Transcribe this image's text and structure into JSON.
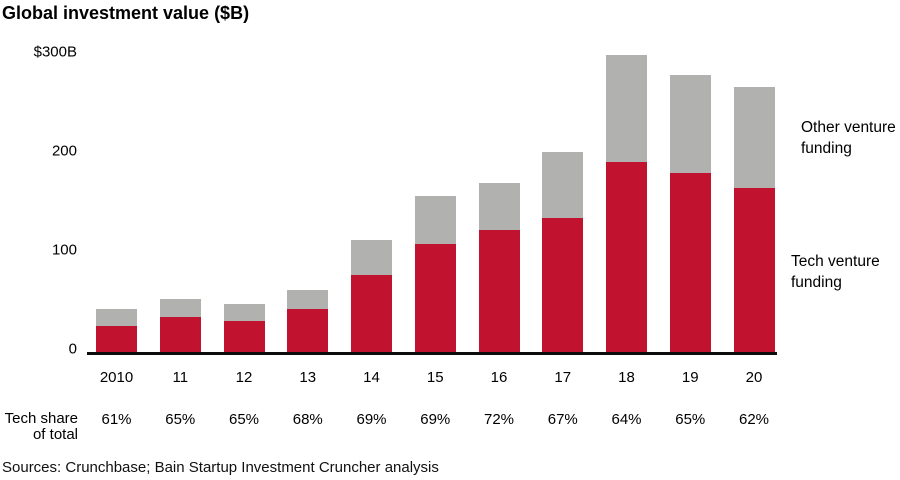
{
  "page": {
    "title": "Global investment value ($B)",
    "sources": "Sources: Crunchbase; Bain Startup Investment Cruncher analysis"
  },
  "labels": {
    "tech_share_line1": "Tech share",
    "tech_share_line2": "of total",
    "other_funding": "Other venture funding",
    "tech_funding": "Tech venture funding"
  },
  "colors": {
    "tech_red": "#c1122f",
    "other_gray": "#b1b1af",
    "axis_black": "#0d0d0d"
  },
  "chart_data": {
    "type": "bar",
    "stacked": true,
    "title": "Global investment value ($B)",
    "categories": [
      "2010",
      "11",
      "12",
      "13",
      "14",
      "15",
      "16",
      "17",
      "18",
      "19",
      "20"
    ],
    "series": [
      {
        "name": "Tech venture funding",
        "color": "#c1122f",
        "values": [
          26,
          35,
          31,
          43,
          78,
          109,
          123,
          135,
          192,
          181,
          166
        ]
      },
      {
        "name": "Other venture funding",
        "color": "#b1b1af",
        "values": [
          17,
          19,
          17,
          20,
          35,
          49,
          48,
          67,
          108,
          99,
          102
        ]
      }
    ],
    "totals": [
      43,
      54,
      48,
      63,
      113,
      158,
      171,
      202,
      300,
      280,
      268
    ],
    "tech_share_pct": [
      "61%",
      "65%",
      "65%",
      "68%",
      "69%",
      "69%",
      "72%",
      "67%",
      "64%",
      "65%",
      "62%"
    ],
    "xlabel": "",
    "ylabel": "Global investment value ($B)",
    "ylim": [
      0,
      300
    ],
    "y_ticks": [
      {
        "value": 300,
        "label": "$300B"
      },
      {
        "value": 200,
        "label": "200"
      },
      {
        "value": 100,
        "label": "100"
      },
      {
        "value": 0,
        "label": "0"
      }
    ],
    "grid": false,
    "legend_position": "right",
    "legend": [
      "Other venture funding",
      "Tech venture funding"
    ]
  }
}
